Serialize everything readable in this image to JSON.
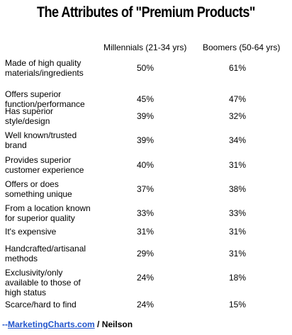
{
  "chart_data": {
    "type": "table",
    "title": "The Attributes of \"Premium Products\"",
    "columns": [
      "Millennials (21-34 yrs)",
      "Boomers (50-64 yrs)"
    ],
    "rows": [
      {
        "label": [
          "Made of high quality",
          "materials/ingredients"
        ],
        "values": [
          "50%",
          "61%"
        ]
      },
      {
        "label": [
          "Offers superior",
          "function/performance"
        ],
        "values": [
          "45%",
          "47%"
        ]
      },
      {
        "label": [
          "Has superior",
          "style/design"
        ],
        "values": [
          "39%",
          "32%"
        ]
      },
      {
        "label": [
          "Well known/trusted",
          "brand"
        ],
        "values": [
          "39%",
          "34%"
        ]
      },
      {
        "label": [
          "Provides superior",
          "customer experience"
        ],
        "values": [
          "40%",
          "31%"
        ]
      },
      {
        "label": [
          "Offers or does",
          "something unique"
        ],
        "values": [
          "37%",
          "38%"
        ]
      },
      {
        "label": [
          "From a location known",
          "for superior quality"
        ],
        "values": [
          "33%",
          "33%"
        ]
      },
      {
        "label": [
          "It's expensive"
        ],
        "values": [
          "31%",
          "31%"
        ]
      },
      {
        "label": [
          "Handcrafted/artisanal",
          "methods"
        ],
        "values": [
          "29%",
          "31%"
        ]
      },
      {
        "label": [
          "Exclusivity/only",
          "available to those of",
          "high status"
        ],
        "values": [
          "24%",
          "18%"
        ]
      },
      {
        "label": [
          "Scarce/hard to find"
        ],
        "values": [
          "24%",
          "15%"
        ]
      }
    ]
  },
  "source": {
    "prefix": "--",
    "link": "MarketingCharts.com",
    "suffix": " / Neilson"
  }
}
